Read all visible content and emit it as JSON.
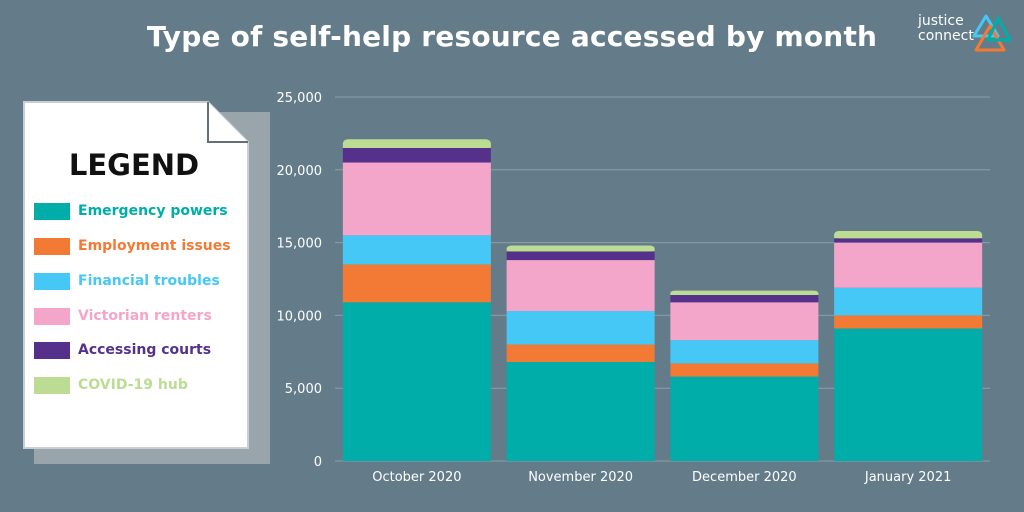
{
  "header": {
    "title": "Type of self-help resource accessed by month",
    "logo_line1": "justice",
    "logo_line2": "connect"
  },
  "legend": {
    "heading": "LEGEND",
    "items": [
      {
        "label": "Emergency powers",
        "color": "#00ada8"
      },
      {
        "label": "Employment issues",
        "color": "#f27a35"
      },
      {
        "label": "Financial troubles",
        "color": "#45c8f5"
      },
      {
        "label": "Victorian renters",
        "color": "#f4a5ca"
      },
      {
        "label": "Accessing courts",
        "color": "#55318c"
      },
      {
        "label": "COVID-19 hub",
        "color": "#bcdc93"
      }
    ]
  },
  "chart_data": {
    "type": "bar",
    "stacked": true,
    "title": "Type of self-help resource accessed by month",
    "categories": [
      "October 2020",
      "November 2020",
      "December 2020",
      "January 2021"
    ],
    "ylim": [
      0,
      25000
    ],
    "yticks": [
      0,
      5000,
      10000,
      15000,
      20000,
      25000
    ],
    "ytick_labels": [
      "0",
      "5,000",
      "10,000",
      "15,000",
      "20,000",
      "25,000"
    ],
    "grid": true,
    "legend_position": "left",
    "series": [
      {
        "name": "Emergency powers",
        "color": "#00ada8",
        "values": [
          10900,
          6800,
          5800,
          9100
        ]
      },
      {
        "name": "Employment issues",
        "color": "#f27a35",
        "values": [
          2600,
          1200,
          900,
          900
        ]
      },
      {
        "name": "Financial troubles",
        "color": "#45c8f5",
        "values": [
          2000,
          2300,
          1600,
          1900
        ]
      },
      {
        "name": "Victorian renters",
        "color": "#f4a5ca",
        "values": [
          5000,
          3500,
          2600,
          3100
        ]
      },
      {
        "name": "Accessing courts",
        "color": "#55318c",
        "values": [
          1000,
          600,
          500,
          300
        ]
      },
      {
        "name": "COVID-19 hub",
        "color": "#bcdc93",
        "values": [
          600,
          400,
          300,
          500
        ]
      }
    ]
  }
}
